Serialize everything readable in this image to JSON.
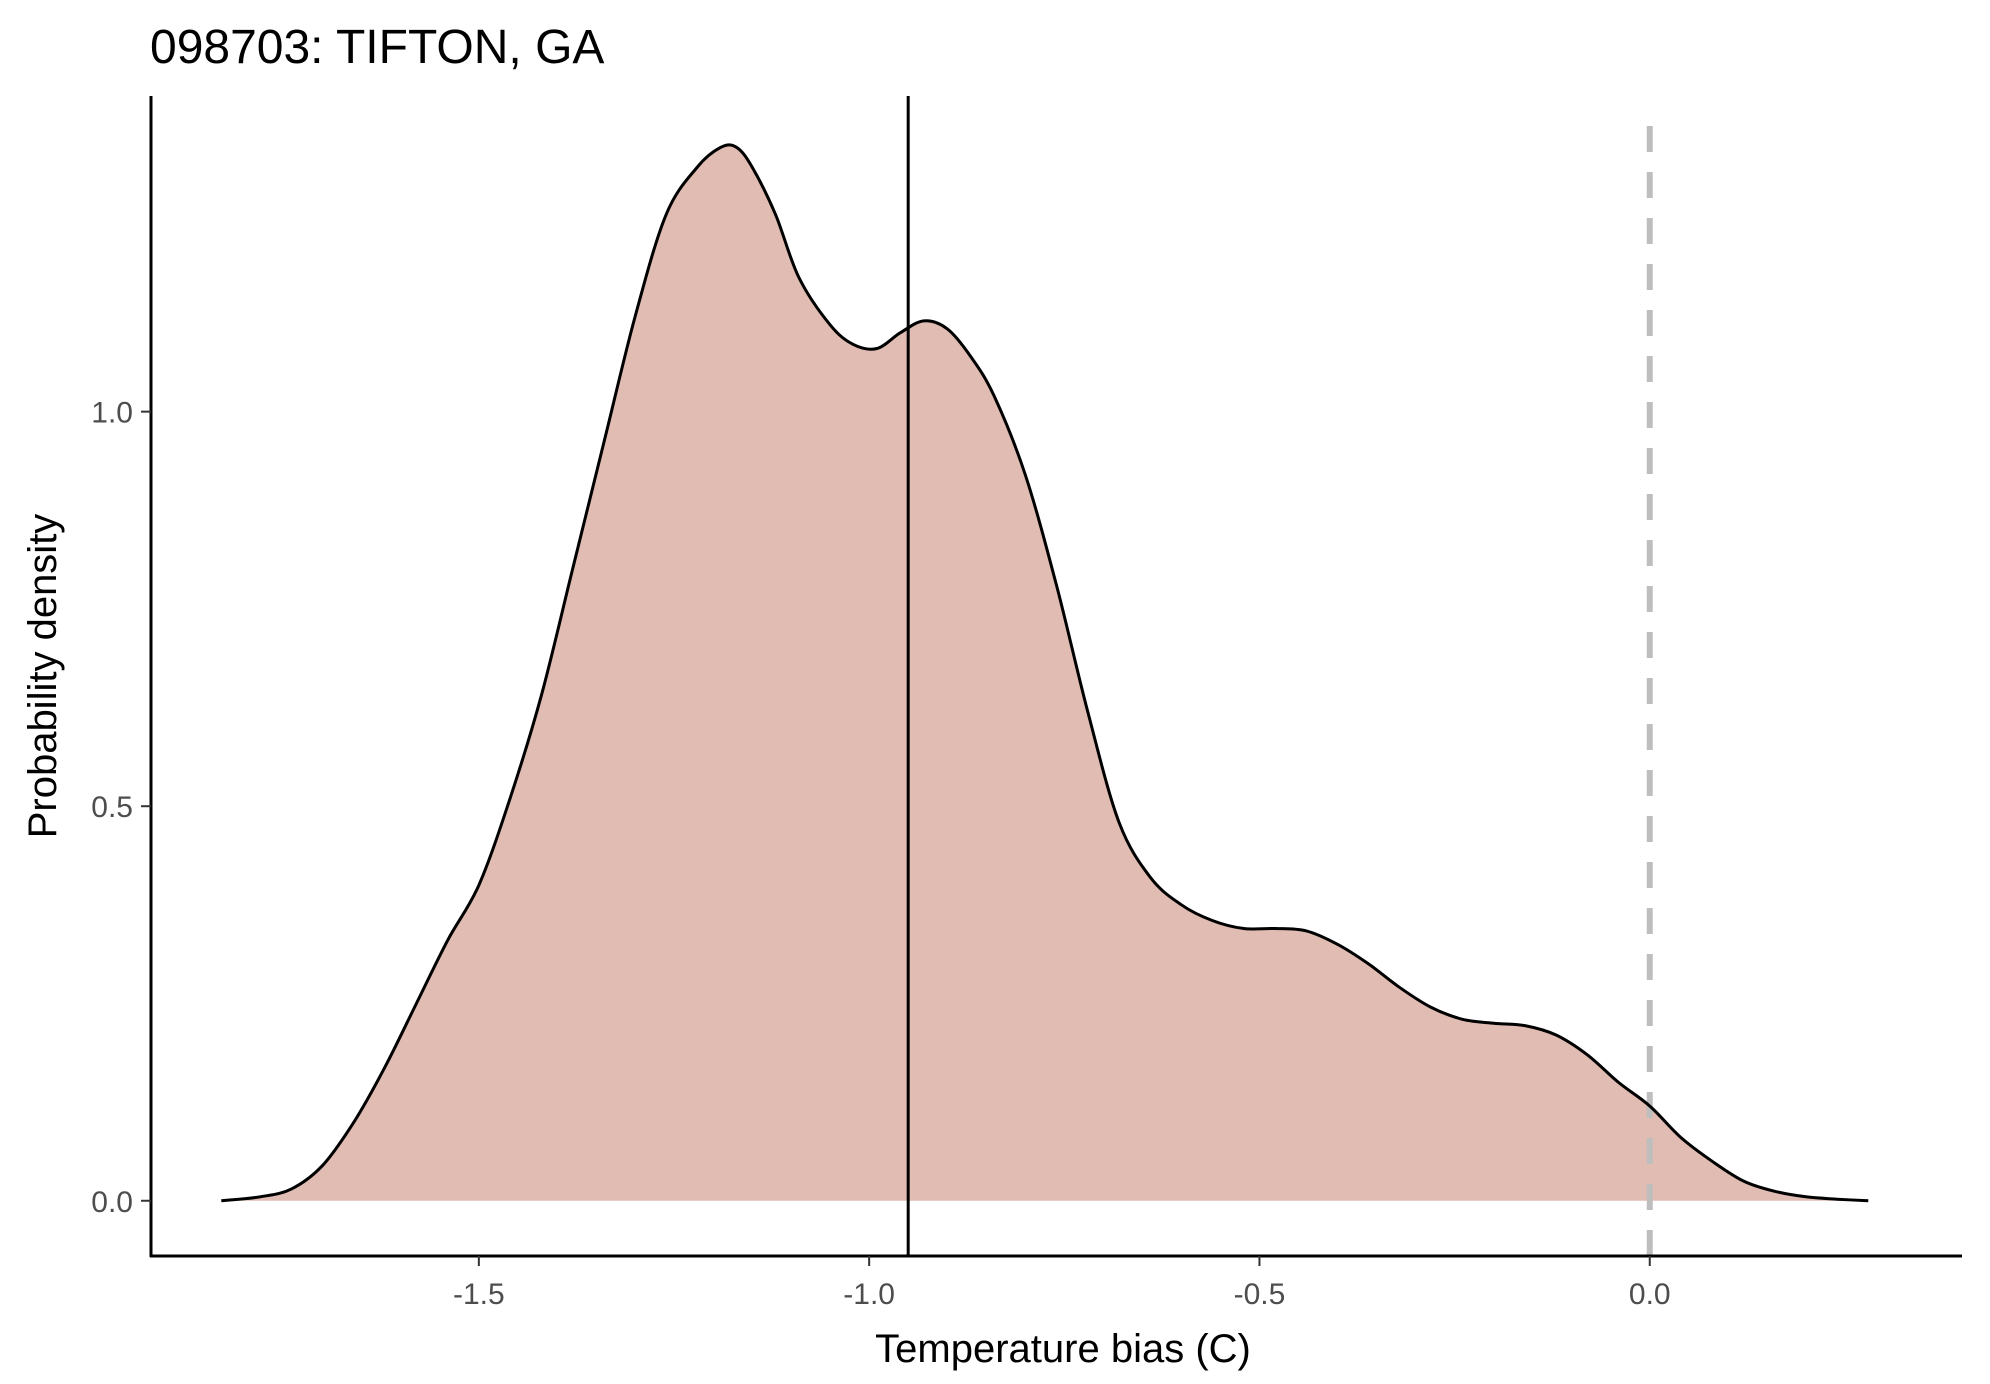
{
  "chart_data": {
    "type": "area",
    "title": "098703: TIFTON, GA",
    "xlabel": "Temperature bias (C)",
    "ylabel": "Probability density",
    "xlim": [
      -1.92,
      0.4
    ],
    "ylim": [
      -0.07,
      1.4
    ],
    "x_ticks": [
      -1.5,
      -1.0,
      -0.5,
      0.0
    ],
    "x_tick_labels": [
      "-1.5",
      "-1.0",
      "-0.5",
      "0.0"
    ],
    "y_ticks": [
      0.0,
      0.5,
      1.0
    ],
    "y_tick_labels": [
      "0.0",
      "0.5",
      "1.0"
    ],
    "grid": false,
    "legend": "none",
    "fill_color": "#e0bcb2",
    "line_color": "#000000",
    "mean_line_x": -0.95,
    "mean_line_color": "#000000",
    "reference_line_x": 0.0,
    "reference_line_color": "#bebebe",
    "reference_line_style": "dashed",
    "series": [
      {
        "x": [
          -1.83,
          -1.78,
          -1.74,
          -1.7,
          -1.66,
          -1.62,
          -1.58,
          -1.54,
          -1.5,
          -1.46,
          -1.42,
          -1.38,
          -1.34,
          -1.3,
          -1.26,
          -1.22,
          -1.19,
          -1.17,
          -1.15,
          -1.12,
          -1.09,
          -1.05,
          -1.02,
          -0.99,
          -0.96,
          -0.93,
          -0.9,
          -0.87,
          -0.84,
          -0.8,
          -0.76,
          -0.72,
          -0.68,
          -0.64,
          -0.6,
          -0.56,
          -0.52,
          -0.48,
          -0.44,
          -0.4,
          -0.36,
          -0.32,
          -0.28,
          -0.24,
          -0.2,
          -0.16,
          -0.12,
          -0.08,
          -0.04,
          0.0,
          0.04,
          0.08,
          0.12,
          0.16,
          0.2,
          0.24,
          0.28
        ],
        "y": [
          0.0,
          0.005,
          0.015,
          0.045,
          0.1,
          0.17,
          0.25,
          0.33,
          0.4,
          0.51,
          0.64,
          0.8,
          0.96,
          1.12,
          1.25,
          1.31,
          1.335,
          1.335,
          1.31,
          1.25,
          1.17,
          1.11,
          1.085,
          1.08,
          1.1,
          1.115,
          1.105,
          1.07,
          1.02,
          0.92,
          0.78,
          0.62,
          0.48,
          0.41,
          0.375,
          0.355,
          0.345,
          0.345,
          0.342,
          0.325,
          0.3,
          0.27,
          0.245,
          0.23,
          0.225,
          0.222,
          0.21,
          0.185,
          0.15,
          0.12,
          0.08,
          0.05,
          0.025,
          0.012,
          0.005,
          0.002,
          0.0
        ]
      }
    ]
  }
}
